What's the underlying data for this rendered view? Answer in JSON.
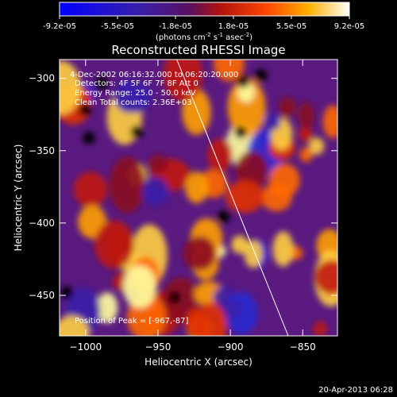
{
  "colorbar": {
    "ticks": [
      "-9.2e-05",
      "-5.5e-05",
      "-1.8e-05",
      "1.8e-05",
      "5.5e-05",
      "9.2e-05"
    ],
    "units_pre": "(photons cm",
    "units_sup1": "-2",
    "units_mid1": " s",
    "units_sup2": "-1",
    "units_mid2": " asec",
    "units_sup3": "-2",
    "units_post": ")"
  },
  "chart_data": {
    "type": "heatmap",
    "title": "Reconstructed RHESSI Image",
    "xlabel": "Heliocentric X (arcsec)",
    "ylabel": "Heliocentric Y (arcsec)",
    "xlim": [
      -1018,
      -826
    ],
    "ylim": [
      -478,
      -287
    ],
    "x_ticks": [
      -1000,
      -950,
      -900,
      -850
    ],
    "y_ticks": [
      -300,
      -350,
      -400,
      -450
    ],
    "value_range": [
      -9.2e-05,
      9.2e-05
    ],
    "peak": [
      -967,
      -87
    ],
    "limb_line": [
      [
        -937,
        -287
      ],
      [
        -860,
        -478
      ]
    ],
    "annotations": {
      "time": "4-Dec-2002 06:16:32.000 to 06:20:20.000",
      "detectors": "Detectors: 4F 5F 6F 7F 8F Att 0",
      "energy": "Energy Range: 25.0 - 50.0 keV",
      "clean": "Clean    Total counts: 2.36E+03",
      "peak_label": "Position of Peak = [-967,-87]"
    }
  },
  "footer": {
    "timestamp": "20-Apr-2013 06:28"
  }
}
